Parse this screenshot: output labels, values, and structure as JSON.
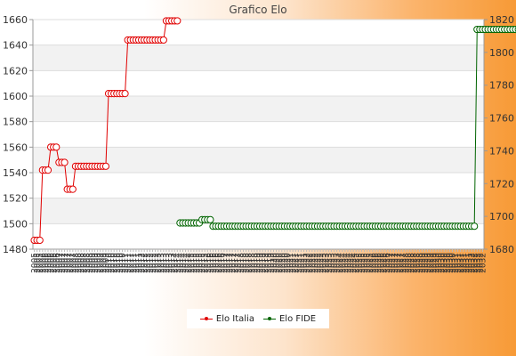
{
  "chart_data": {
    "type": "line",
    "title": "Grafico Elo",
    "grid": true,
    "legend_placement": "bottom",
    "y_left": {
      "min": 1480,
      "max": 1660,
      "ticks": [
        1480,
        1500,
        1520,
        1540,
        1560,
        1580,
        1600,
        1620,
        1640,
        1660
      ]
    },
    "y_right": {
      "min": 1680,
      "max": 1820,
      "ticks": [
        1680,
        1700,
        1720,
        1740,
        1760,
        1780,
        1800,
        1820
      ]
    },
    "series": [
      {
        "name": "Elo Italia",
        "color": "#e00000",
        "axis": "left",
        "values": [
          1487,
          1487,
          1487,
          1542,
          1542,
          1542,
          1560,
          1560,
          1560,
          1548,
          1548,
          1548,
          1527,
          1527,
          1527,
          1545,
          1545,
          1545,
          1545,
          1545,
          1545,
          1545,
          1545,
          1545,
          1545,
          1545,
          1545,
          1602,
          1602,
          1602,
          1602,
          1602,
          1602,
          1602,
          1644,
          1644,
          1644,
          1644,
          1644,
          1644,
          1644,
          1644,
          1644,
          1644,
          1644,
          1644,
          1644,
          1644,
          1659,
          1659,
          1659,
          1659,
          1659
        ]
      },
      {
        "name": "Elo FIDE",
        "color": "#006400",
        "axis": "right",
        "start_index": 53,
        "values": [
          1696,
          1696,
          1696,
          1696,
          1696,
          1696,
          1696,
          1696,
          1698,
          1698,
          1698,
          1698,
          1694,
          1694,
          1694,
          1694,
          1694,
          1694,
          1694,
          1694,
          1694,
          1694,
          1694,
          1694,
          1694,
          1694,
          1694,
          1694,
          1694,
          1694,
          1694,
          1694,
          1694,
          1694,
          1694,
          1694,
          1694,
          1694,
          1694,
          1694,
          1694,
          1694,
          1694,
          1694,
          1694,
          1694,
          1694,
          1694,
          1694,
          1694,
          1694,
          1694,
          1694,
          1694,
          1694,
          1694,
          1694,
          1694,
          1694,
          1694,
          1694,
          1694,
          1694,
          1694,
          1694,
          1694,
          1694,
          1694,
          1694,
          1694,
          1694,
          1694,
          1694,
          1694,
          1694,
          1694,
          1694,
          1694,
          1694,
          1694,
          1694,
          1694,
          1694,
          1694,
          1694,
          1694,
          1694,
          1694,
          1694,
          1694,
          1694,
          1694,
          1694,
          1694,
          1694,
          1694,
          1694,
          1694,
          1694,
          1694,
          1694,
          1694,
          1694,
          1694,
          1694,
          1694,
          1694,
          1694,
          1814,
          1814,
          1814,
          1814,
          1814,
          1814,
          1814,
          1814,
          1814,
          1814,
          1814,
          1814,
          1814,
          1814,
          1814,
          1814,
          1814,
          1814,
          1814
        ]
      }
    ],
    "x_tick_labels": [
      "2005",
      "2005",
      "2005",
      "2006",
      "2006",
      "2006",
      "2006",
      "2006",
      "2006",
      "2007",
      "2007",
      "2007",
      "2007",
      "2007",
      "2007",
      "2008",
      "2008",
      "2008",
      "2008",
      "2008",
      "2008",
      "2009",
      "2009",
      "2009",
      "2009",
      "2009",
      "2009",
      "2010",
      "2010",
      "2010",
      "2010",
      "2010",
      "2010",
      "2011",
      "2011",
      "2011",
      "2011",
      "2011",
      "2011",
      "2012",
      "2012",
      "2012",
      "2012",
      "2012",
      "2012",
      "2013",
      "2013",
      "2013",
      "2013",
      "2013",
      "2013",
      "2014",
      "2014",
      "2014",
      "2014",
      "2014",
      "2014",
      "2015",
      "2015",
      "2015",
      "2015",
      "2015",
      "2015",
      "2016",
      "2016",
      "2016",
      "2016",
      "2016",
      "2016",
      "2017",
      "2017",
      "2017",
      "2017",
      "2017",
      "2017",
      "2018",
      "2018",
      "2018",
      "2018",
      "2018",
      "2018",
      "2019",
      "2019",
      "2019",
      "2019",
      "2019",
      "2019",
      "2020",
      "2020",
      "2020",
      "2020",
      "2020",
      "2020",
      "2021",
      "2021",
      "2021",
      "2021",
      "2021",
      "2021",
      "2022",
      "2022",
      "2022",
      "2022",
      "2022",
      "2022",
      "2023",
      "2023",
      "2023",
      "2023",
      "2023",
      "2023",
      "2024",
      "2024",
      "2024",
      "2024",
      "2024",
      "2024",
      "2025",
      "2025",
      "2025",
      "2025",
      "2025",
      "2025",
      "2026",
      "2026",
      "2026",
      "2026",
      "2026",
      "2026",
      "2027",
      "2027",
      "2027",
      "2027",
      "2027",
      "2027",
      "2028",
      "2028",
      "2028",
      "2028",
      "2028",
      "2028",
      "2029",
      "2029",
      "2029",
      "2029",
      "2029",
      "2029",
      "2030",
      "2030",
      "2030",
      "2030",
      "2030",
      "2030",
      "2031",
      "2031",
      "2031",
      "2031",
      "2031",
      "2031",
      "2032",
      "2032",
      "2032",
      "2032",
      "2032"
    ]
  }
}
